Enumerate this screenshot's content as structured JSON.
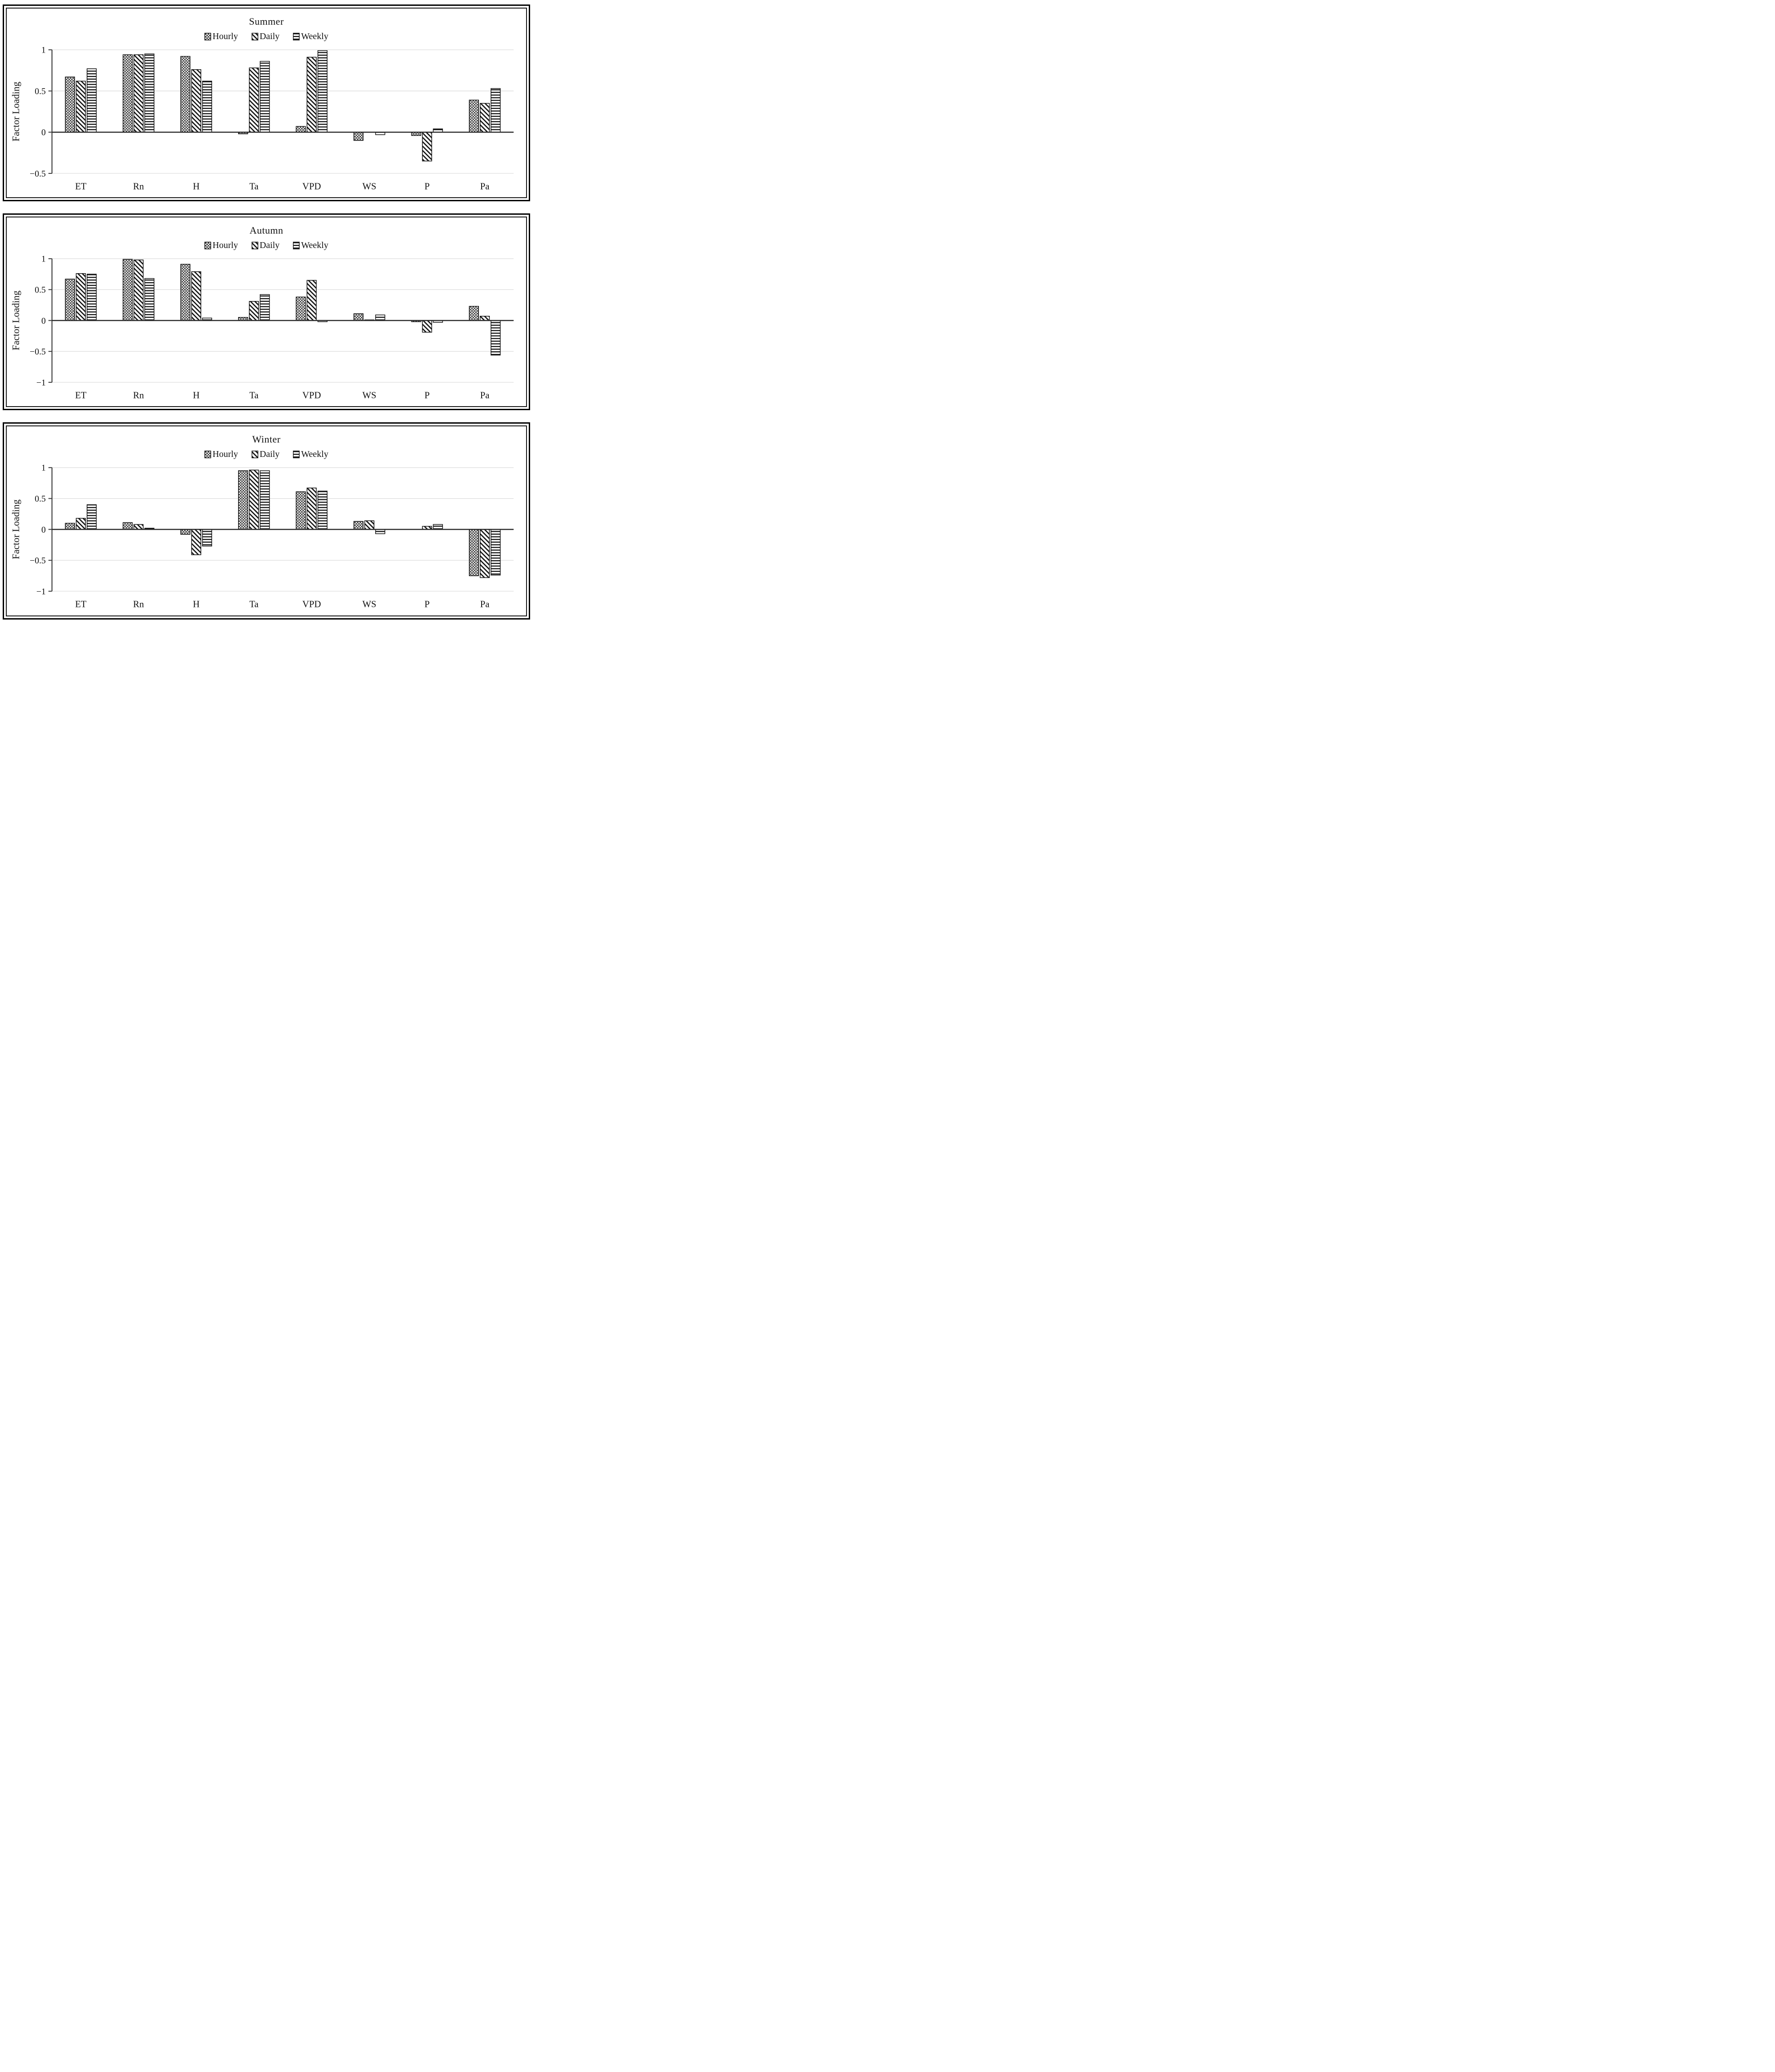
{
  "page_background": "#ffffff",
  "colors": {
    "bar_stroke": "#111111",
    "pattern_ink": "#111111",
    "gridline": "#d9d9d9",
    "axis_line": "#3a3a3a",
    "zero_line": "#2b2b2b",
    "text": "#111111"
  },
  "legend_icons": [
    {
      "name": "hourly-swatch-icon",
      "pattern": "crosshatch"
    },
    {
      "name": "daily-swatch-icon",
      "pattern": "diagonal"
    },
    {
      "name": "weekly-swatch-icon",
      "pattern": "horizontal"
    }
  ],
  "chart_data": [
    {
      "type": "bar",
      "title": "Summer",
      "ylabel": "Factor Loading",
      "xlabel": "",
      "categories": [
        "ET",
        "Rn",
        "H",
        "Ta",
        "VPD",
        "WS",
        "P",
        "Pa"
      ],
      "series": [
        {
          "name": "Hourly",
          "pattern": "crosshatch",
          "values": [
            0.67,
            0.94,
            0.92,
            -0.02,
            0.07,
            -0.1,
            -0.04,
            0.39
          ]
        },
        {
          "name": "Daily",
          "pattern": "diagonal",
          "values": [
            0.62,
            0.94,
            0.76,
            0.78,
            0.91,
            0.0,
            -0.35,
            0.35
          ]
        },
        {
          "name": "Weekly",
          "pattern": "horizontal",
          "values": [
            0.77,
            0.95,
            0.62,
            0.86,
            0.99,
            -0.03,
            0.04,
            0.53
          ]
        }
      ],
      "ylim": [
        -0.5,
        1
      ],
      "yticks": [
        1,
        0.5,
        0,
        -0.5
      ],
      "grid": true,
      "legend_position": "top"
    },
    {
      "type": "bar",
      "title": "Autumn",
      "ylabel": "Factor Loading",
      "xlabel": "",
      "categories": [
        "ET",
        "Rn",
        "H",
        "Ta",
        "VPD",
        "WS",
        "P",
        "Pa"
      ],
      "series": [
        {
          "name": "Hourly",
          "pattern": "crosshatch",
          "values": [
            0.67,
            0.99,
            0.91,
            0.05,
            0.38,
            0.11,
            -0.02,
            0.23
          ]
        },
        {
          "name": "Daily",
          "pattern": "diagonal",
          "values": [
            0.76,
            0.98,
            0.79,
            0.31,
            0.65,
            0.01,
            -0.19,
            0.07
          ]
        },
        {
          "name": "Weekly",
          "pattern": "horizontal",
          "values": [
            0.75,
            0.68,
            0.04,
            0.42,
            -0.02,
            0.09,
            -0.03,
            -0.56
          ]
        }
      ],
      "ylim": [
        -1,
        1
      ],
      "yticks": [
        1,
        0.5,
        0,
        -0.5,
        -1
      ],
      "grid": true,
      "legend_position": "top"
    },
    {
      "type": "bar",
      "title": "Winter",
      "ylabel": "Factor Loading",
      "xlabel": "",
      "categories": [
        "ET",
        "Rn",
        "H",
        "Ta",
        "VPD",
        "WS",
        "P",
        "Pa"
      ],
      "series": [
        {
          "name": "Hourly",
          "pattern": "crosshatch",
          "values": [
            0.1,
            0.11,
            -0.08,
            0.95,
            0.61,
            0.13,
            0.0,
            -0.75
          ]
        },
        {
          "name": "Daily",
          "pattern": "diagonal",
          "values": [
            0.18,
            0.08,
            -0.41,
            0.96,
            0.67,
            0.14,
            0.05,
            -0.78
          ]
        },
        {
          "name": "Weekly",
          "pattern": "horizontal",
          "values": [
            0.4,
            0.02,
            -0.27,
            0.95,
            0.62,
            -0.07,
            0.08,
            -0.74
          ]
        }
      ],
      "ylim": [
        -1,
        1
      ],
      "yticks": [
        1,
        0.5,
        0,
        -0.5,
        -1
      ],
      "grid": true,
      "legend_position": "top"
    }
  ]
}
